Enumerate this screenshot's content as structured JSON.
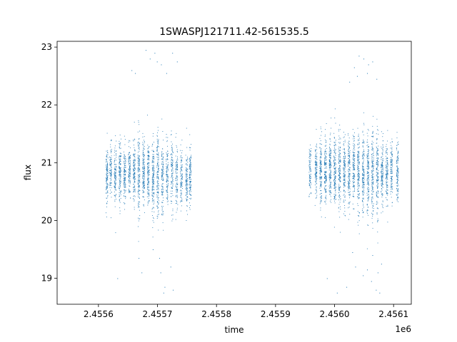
{
  "chart_data": {
    "type": "scatter",
    "title": "1SWASPJ121711.42-561535.5",
    "xlabel": "time",
    "ylabel": "flux",
    "x_offset_label": "1e6",
    "xlim": [
      2.45553,
      2.45613
    ],
    "ylim": [
      18.55,
      23.1
    ],
    "x_ticks": [
      2.4556,
      2.4557,
      2.4558,
      2.4559,
      2.456,
      2.4561
    ],
    "x_tick_labels": [
      "2.4556",
      "2.4557",
      "2.4558",
      "2.4559",
      "2.4560",
      "2.4561"
    ],
    "y_ticks": [
      19,
      20,
      21,
      22,
      23
    ],
    "y_tick_labels": [
      "19",
      "20",
      "21",
      "22",
      "23"
    ],
    "grid": false,
    "marker_color": "#1f77b4",
    "series": [
      {
        "nights": [
          {
            "x": 2.455614,
            "y_mean": 20.8,
            "y_spread": 0.4,
            "n": 120
          },
          {
            "x": 2.45562,
            "y_mean": 20.9,
            "y_spread": 0.35,
            "n": 100
          },
          {
            "x": 2.455628,
            "y_mean": 20.8,
            "y_spread": 0.4,
            "n": 110
          },
          {
            "x": 2.455636,
            "y_mean": 20.85,
            "y_spread": 0.45,
            "n": 140
          },
          {
            "x": 2.455644,
            "y_mean": 20.8,
            "y_spread": 0.4,
            "n": 120
          },
          {
            "x": 2.455652,
            "y_mean": 20.9,
            "y_spread": 0.4,
            "n": 110
          },
          {
            "x": 2.45566,
            "y_mean": 20.85,
            "y_spread": 0.45,
            "n": 130
          },
          {
            "x": 2.455668,
            "y_mean": 20.8,
            "y_spread": 0.5,
            "n": 150
          },
          {
            "x": 2.455676,
            "y_mean": 20.85,
            "y_spread": 0.45,
            "n": 150
          },
          {
            "x": 2.455684,
            "y_mean": 20.8,
            "y_spread": 0.5,
            "n": 140
          },
          {
            "x": 2.455692,
            "y_mean": 20.75,
            "y_spread": 0.55,
            "n": 150
          },
          {
            "x": 2.4557,
            "y_mean": 20.8,
            "y_spread": 0.6,
            "n": 150
          },
          {
            "x": 2.455708,
            "y_mean": 20.8,
            "y_spread": 0.5,
            "n": 120
          },
          {
            "x": 2.455716,
            "y_mean": 20.8,
            "y_spread": 0.45,
            "n": 110
          },
          {
            "x": 2.455724,
            "y_mean": 20.8,
            "y_spread": 0.5,
            "n": 110
          },
          {
            "x": 2.455732,
            "y_mean": 20.8,
            "y_spread": 0.45,
            "n": 100
          },
          {
            "x": 2.45574,
            "y_mean": 20.75,
            "y_spread": 0.45,
            "n": 100
          },
          {
            "x": 2.455749,
            "y_mean": 20.7,
            "y_spread": 0.4,
            "n": 110
          },
          {
            "x": 2.455755,
            "y_mean": 20.75,
            "y_spread": 0.45,
            "n": 120
          },
          {
            "x": 2.455958,
            "y_mean": 20.85,
            "y_spread": 0.35,
            "n": 90
          },
          {
            "x": 2.455968,
            "y_mean": 20.9,
            "y_spread": 0.4,
            "n": 120
          },
          {
            "x": 2.455976,
            "y_mean": 20.85,
            "y_spread": 0.45,
            "n": 140
          },
          {
            "x": 2.455984,
            "y_mean": 20.85,
            "y_spread": 0.5,
            "n": 150
          },
          {
            "x": 2.455992,
            "y_mean": 20.9,
            "y_spread": 0.45,
            "n": 150
          },
          {
            "x": 2.456,
            "y_mean": 20.85,
            "y_spread": 0.5,
            "n": 150
          },
          {
            "x": 2.456008,
            "y_mean": 20.8,
            "y_spread": 0.55,
            "n": 150
          },
          {
            "x": 2.456016,
            "y_mean": 20.85,
            "y_spread": 0.5,
            "n": 140
          },
          {
            "x": 2.456024,
            "y_mean": 20.85,
            "y_spread": 0.5,
            "n": 140
          },
          {
            "x": 2.456032,
            "y_mean": 20.9,
            "y_spread": 0.5,
            "n": 140
          },
          {
            "x": 2.45604,
            "y_mean": 20.8,
            "y_spread": 0.55,
            "n": 150
          },
          {
            "x": 2.456048,
            "y_mean": 20.8,
            "y_spread": 0.6,
            "n": 150
          },
          {
            "x": 2.456056,
            "y_mean": 20.75,
            "y_spread": 0.6,
            "n": 150
          },
          {
            "x": 2.456064,
            "y_mean": 20.8,
            "y_spread": 0.6,
            "n": 150
          },
          {
            "x": 2.456072,
            "y_mean": 20.8,
            "y_spread": 0.6,
            "n": 150
          },
          {
            "x": 2.45608,
            "y_mean": 20.85,
            "y_spread": 0.5,
            "n": 140
          },
          {
            "x": 2.456088,
            "y_mean": 20.85,
            "y_spread": 0.45,
            "n": 120
          },
          {
            "x": 2.456096,
            "y_mean": 20.8,
            "y_spread": 0.45,
            "n": 110
          },
          {
            "x": 2.456106,
            "y_mean": 20.8,
            "y_spread": 0.45,
            "n": 120
          }
        ],
        "outliers": [
          [
            2.455656,
            22.6
          ],
          [
            2.455662,
            22.55
          ],
          [
            2.45568,
            22.95
          ],
          [
            2.455687,
            22.8
          ],
          [
            2.455695,
            22.9
          ],
          [
            2.455699,
            22.75
          ],
          [
            2.455706,
            22.7
          ],
          [
            2.455715,
            22.55
          ],
          [
            2.455725,
            22.9
          ],
          [
            2.455733,
            22.75
          ],
          [
            2.455705,
            19.1
          ],
          [
            2.45571,
            18.75
          ],
          [
            2.455703,
            19.35
          ],
          [
            2.455673,
            19.1
          ],
          [
            2.455668,
            19.35
          ],
          [
            2.455722,
            19.2
          ],
          [
            2.455632,
            19.0
          ],
          [
            2.455712,
            18.85
          ],
          [
            2.455726,
            18.8
          ],
          [
            2.455692,
            19.5
          ],
          [
            2.456033,
            22.65
          ],
          [
            2.456041,
            22.85
          ],
          [
            2.456049,
            22.8
          ],
          [
            2.456057,
            22.7
          ],
          [
            2.456064,
            22.75
          ],
          [
            2.456055,
            22.55
          ],
          [
            2.456038,
            22.5
          ],
          [
            2.456071,
            22.45
          ],
          [
            2.456025,
            22.4
          ],
          [
            2.456062,
            18.95
          ],
          [
            2.45607,
            18.8
          ],
          [
            2.456048,
            19.05
          ],
          [
            2.456055,
            19.15
          ],
          [
            2.456076,
            18.75
          ],
          [
            2.456035,
            19.2
          ],
          [
            2.456079,
            19.25
          ],
          [
            2.456064,
            19.4
          ],
          [
            2.45602,
            18.85
          ],
          [
            2.456004,
            18.75
          ],
          [
            2.45603,
            19.45
          ],
          [
            2.455987,
            19.0
          ],
          [
            2.456073,
            19.1
          ]
        ]
      }
    ]
  }
}
